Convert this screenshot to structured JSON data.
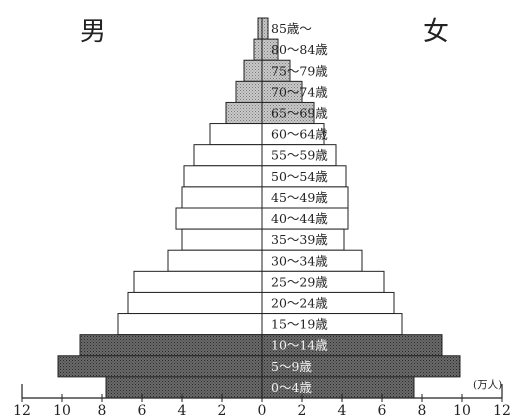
{
  "chart_data": {
    "type": "bar",
    "subtype": "population-pyramid",
    "left_label": "男",
    "right_label": "女",
    "unit": "(万人)",
    "xlim": [
      -12,
      12
    ],
    "x_ticks": [
      "12",
      "10",
      "8",
      "6",
      "4",
      "2",
      "0",
      "2",
      "4",
      "6",
      "8",
      "10",
      "12"
    ],
    "categories": [
      "85歳～",
      "80～84歳",
      "75～79歳",
      "70～74歳",
      "65～69歳",
      "60～64歳",
      "55～59歳",
      "50～54歳",
      "45～49歳",
      "40～44歳",
      "35～39歳",
      "30～34歳",
      "25～29歳",
      "20～24歳",
      "15～19歳",
      "10～14歳",
      "5～9歳",
      "0～4歳"
    ],
    "series": [
      {
        "name": "男",
        "values": [
          0.2,
          0.4,
          0.9,
          1.3,
          1.8,
          2.6,
          3.4,
          3.9,
          4.0,
          4.3,
          4.0,
          4.7,
          6.4,
          6.7,
          7.2,
          9.1,
          10.2,
          7.8
        ]
      },
      {
        "name": "女",
        "values": [
          0.3,
          0.8,
          1.4,
          2.0,
          2.6,
          3.1,
          3.7,
          4.2,
          4.3,
          4.3,
          4.1,
          5.0,
          6.1,
          6.6,
          7.0,
          9.0,
          9.9,
          7.6
        ]
      }
    ],
    "shading": {
      "aged": [
        "85歳～",
        "80～84歳",
        "75～79歳",
        "70～74歳",
        "65～69歳"
      ],
      "young": [
        "10～14歳",
        "5～9歳",
        "0～4歳"
      ]
    }
  }
}
